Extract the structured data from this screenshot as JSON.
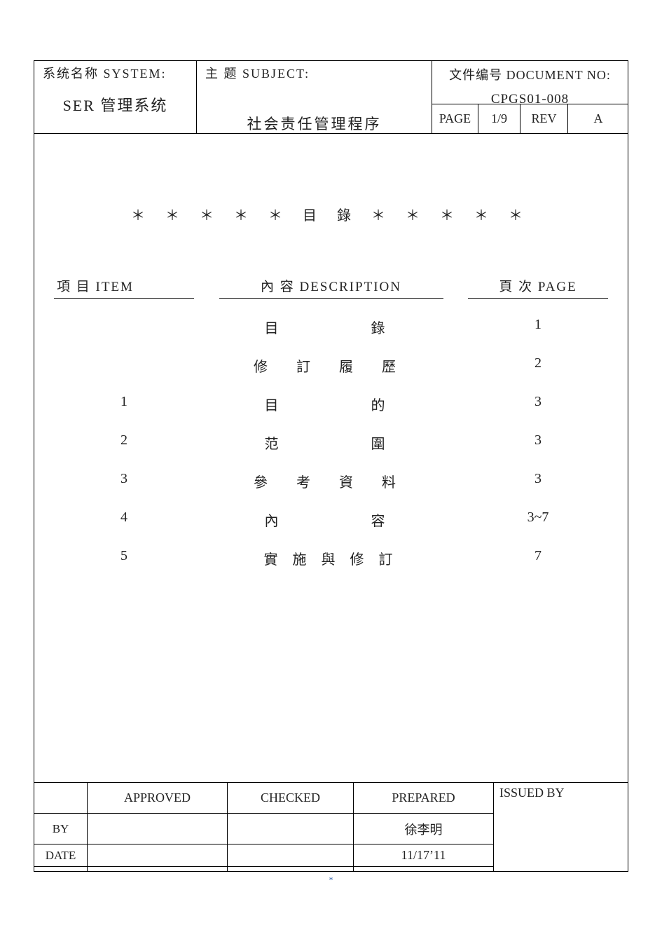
{
  "header": {
    "system_label": "系统名称 SYSTEM:",
    "system_name": "SER 管理系统",
    "subject_label": "主 题 SUBJECT:",
    "subject_title": "社会责任管理程序",
    "docno_label": "文件编号 DOCUMENT NO:",
    "docno": "CPGS01-008",
    "page_label": "PAGE",
    "page_value": "1/9",
    "rev_label": "REV",
    "rev_value": "A"
  },
  "toc": {
    "title": "＊ ＊ ＊ ＊ ＊  目  錄  ＊ ＊ ＊ ＊ ＊",
    "col_item": "項 目 ITEM",
    "col_desc": "內 容  DESCRIPTION",
    "col_page": "頁 次 PAGE",
    "rows": [
      {
        "item": "",
        "desc": "目　　　錄",
        "page": "1"
      },
      {
        "item": "",
        "desc": "修 訂 履 歷",
        "page": "2"
      },
      {
        "item": "1",
        "desc": "目　　　的",
        "page": "3"
      },
      {
        "item": "2",
        "desc": "范　　　圍",
        "page": "3"
      },
      {
        "item": "3",
        "desc": "參 考 資 料",
        "page": "3"
      },
      {
        "item": "4",
        "desc": "內　　　容",
        "page": "3~7"
      },
      {
        "item": "5",
        "desc": "實 施 與 修 訂",
        "page": "7"
      }
    ]
  },
  "sig": {
    "col_approved": "APPROVED",
    "col_checked": "CHECKED",
    "col_prepared": "PREPARED",
    "col_issued": "ISSUED BY",
    "row_by": "BY",
    "row_date": "DATE",
    "approved_by": "",
    "approved_date": "",
    "checked_by": "",
    "checked_date": "",
    "prepared_by": "徐李明",
    "prepared_date": "11/17’11"
  },
  "footnote": "*"
}
